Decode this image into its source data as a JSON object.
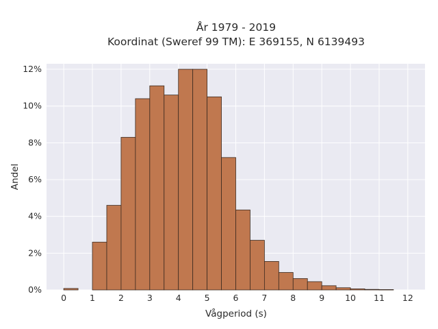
{
  "chart_data": {
    "type": "bar",
    "title": [
      "År 1979 - 2019",
      "Koordinat (Sweref 99 TM): E 369155, N 6139493"
    ],
    "xlabel": "Vågperiod (s)",
    "ylabel": "Andel",
    "xlim": [
      -0.6,
      12.6
    ],
    "ylim": [
      0,
      12.3
    ],
    "xticks": [
      0,
      1,
      2,
      3,
      4,
      5,
      6,
      7,
      8,
      9,
      10,
      11,
      12
    ],
    "yticks": [
      0,
      2,
      4,
      6,
      8,
      10,
      12
    ],
    "ytick_format": "%",
    "grid": true,
    "bin_width": 0.5,
    "bins": [
      {
        "x0": 0.0,
        "value": 0.08
      },
      {
        "x0": 1.0,
        "value": 2.6
      },
      {
        "x0": 1.5,
        "value": 4.6
      },
      {
        "x0": 2.0,
        "value": 8.3
      },
      {
        "x0": 2.5,
        "value": 10.4
      },
      {
        "x0": 3.0,
        "value": 11.1
      },
      {
        "x0": 3.5,
        "value": 10.6
      },
      {
        "x0": 4.0,
        "value": 12.0
      },
      {
        "x0": 4.5,
        "value": 12.0
      },
      {
        "x0": 5.0,
        "value": 10.5
      },
      {
        "x0": 5.5,
        "value": 7.2
      },
      {
        "x0": 6.0,
        "value": 4.35
      },
      {
        "x0": 6.5,
        "value": 2.7
      },
      {
        "x0": 7.0,
        "value": 1.55
      },
      {
        "x0": 7.5,
        "value": 0.95
      },
      {
        "x0": 8.0,
        "value": 0.62
      },
      {
        "x0": 8.5,
        "value": 0.45
      },
      {
        "x0": 9.0,
        "value": 0.23
      },
      {
        "x0": 9.5,
        "value": 0.12
      },
      {
        "x0": 10.0,
        "value": 0.06
      },
      {
        "x0": 10.5,
        "value": 0.03
      },
      {
        "x0": 11.0,
        "value": 0.02
      }
    ],
    "bar_color": "#c0784f",
    "background_color": "#eaeaf2"
  }
}
